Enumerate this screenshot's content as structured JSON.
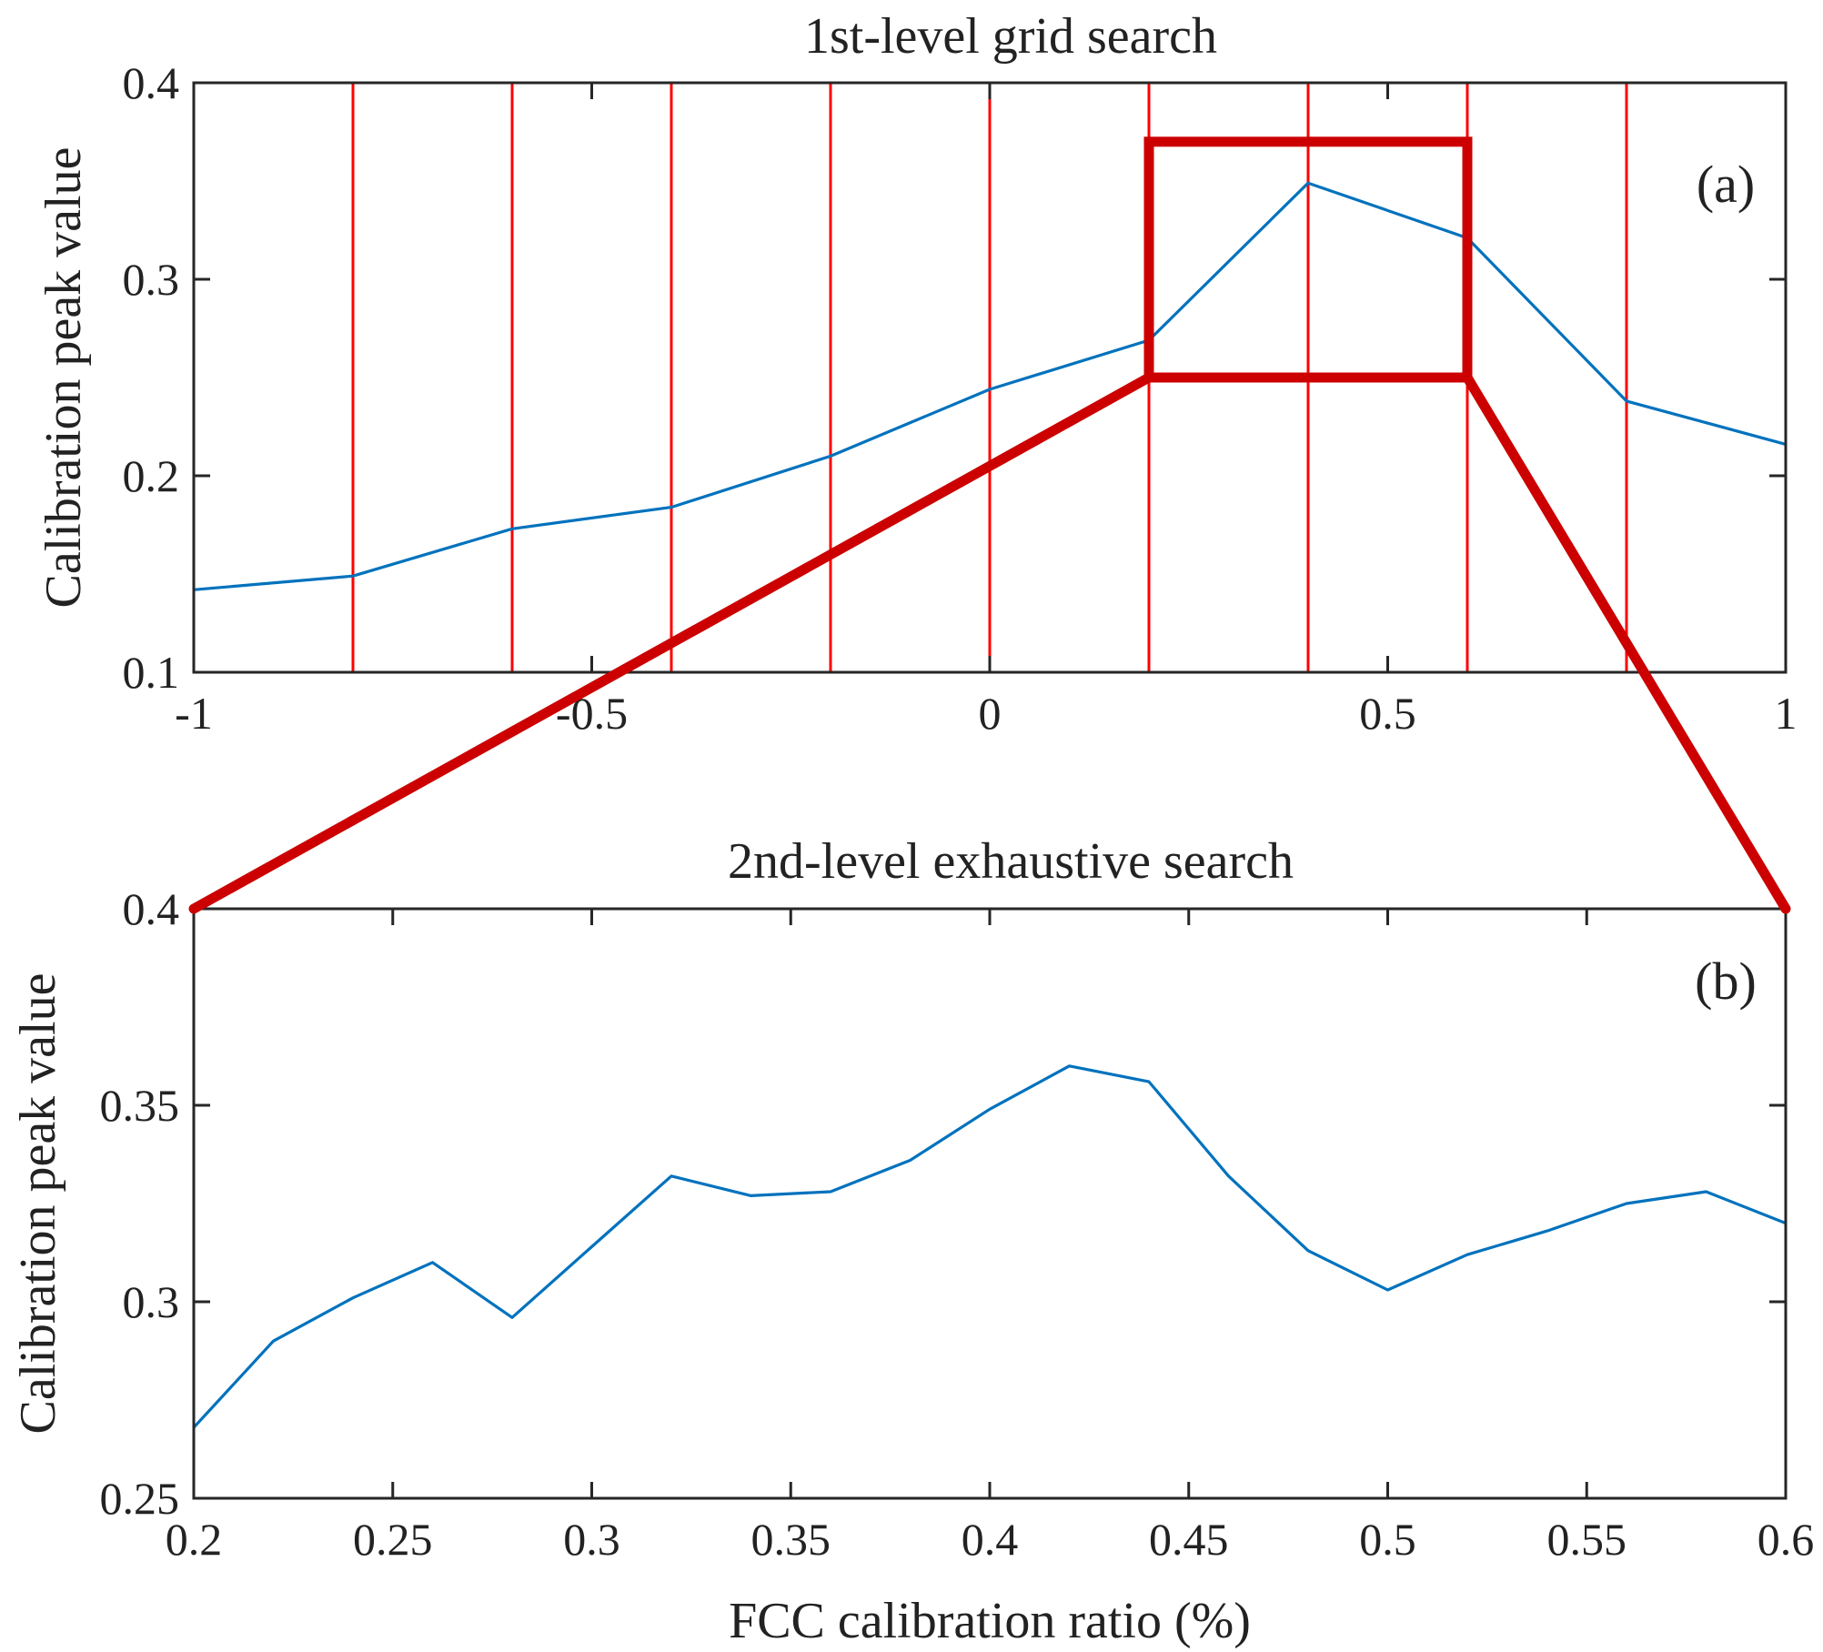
{
  "colors": {
    "series": "#0072BD",
    "grid_lines": "#FF0000",
    "zoom_box": "#CC0000",
    "axes": "#262626"
  },
  "chart_data": [
    {
      "type": "line",
      "panel_label": "(a)",
      "title": "1st-level grid search",
      "xlabel": "",
      "ylabel": "Calibration peak value",
      "xlim": [
        -1,
        1
      ],
      "ylim": [
        0.1,
        0.4
      ],
      "xticks": [
        -1,
        -0.5,
        0,
        0.5,
        1
      ],
      "xtick_labels": [
        "-1",
        "-0.5",
        "0",
        "0.5",
        "1"
      ],
      "yticks": [
        0.1,
        0.2,
        0.3,
        0.4
      ],
      "ytick_labels": [
        "0.1",
        "0.2",
        "0.3",
        "0.4"
      ],
      "grid": false,
      "vertical_markers": [
        -0.8,
        -0.6,
        -0.4,
        -0.2,
        0,
        0.2,
        0.4,
        0.6,
        0.8
      ],
      "highlight_box": {
        "x": [
          0.2,
          0.6
        ],
        "y": [
          0.25,
          0.37
        ]
      },
      "series": [
        {
          "x": [
            -1,
            -0.8,
            -0.6,
            -0.4,
            -0.2,
            0,
            0.2,
            0.4,
            0.6,
            0.8,
            1
          ],
          "values": [
            0.142,
            0.149,
            0.173,
            0.184,
            0.21,
            0.244,
            0.269,
            0.349,
            0.321,
            0.238,
            0.216
          ]
        }
      ]
    },
    {
      "type": "line",
      "panel_label": "(b)",
      "title": "2nd-level exhaustive search",
      "xlabel": "FCC calibration ratio (%)",
      "ylabel": "Calibration peak value",
      "xlim": [
        0.2,
        0.6
      ],
      "ylim": [
        0.25,
        0.4
      ],
      "xticks": [
        0.2,
        0.25,
        0.3,
        0.35,
        0.4,
        0.45,
        0.5,
        0.55,
        0.6
      ],
      "xtick_labels": [
        "0.2",
        "0.25",
        "0.3",
        "0.35",
        "0.4",
        "0.45",
        "0.5",
        "0.55",
        "0.6"
      ],
      "yticks": [
        0.25,
        0.3,
        0.35,
        0.4
      ],
      "ytick_labels": [
        "0.25",
        "0.3",
        "0.35",
        "0.4"
      ],
      "grid": false,
      "series": [
        {
          "x": [
            0.2,
            0.22,
            0.24,
            0.26,
            0.28,
            0.3,
            0.32,
            0.34,
            0.36,
            0.38,
            0.4,
            0.42,
            0.44,
            0.46,
            0.48,
            0.5,
            0.52,
            0.54,
            0.56,
            0.58,
            0.6
          ],
          "values": [
            0.268,
            0.29,
            0.301,
            0.31,
            0.296,
            0.314,
            0.332,
            0.327,
            0.328,
            0.336,
            0.349,
            0.36,
            0.356,
            0.332,
            0.313,
            0.303,
            0.312,
            0.318,
            0.325,
            0.328,
            0.32
          ]
        }
      ]
    }
  ]
}
